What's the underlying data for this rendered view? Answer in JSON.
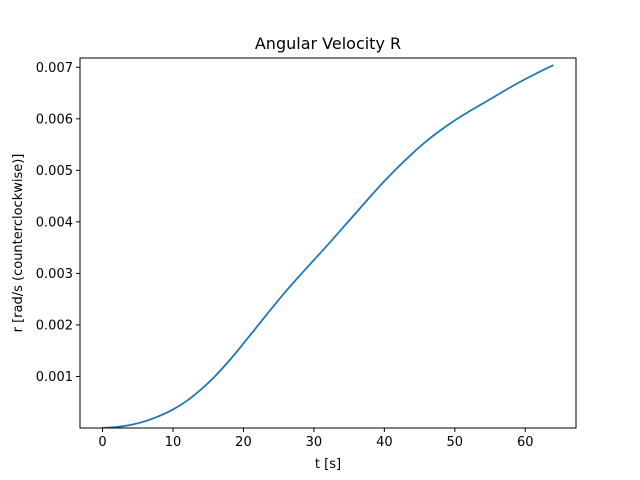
{
  "chart_data": {
    "type": "line",
    "title": "Angular Velocity R",
    "xlabel": "t [s]",
    "ylabel": "r [rad/s (counterclockwise)]",
    "xlim": [
      -3.2,
      67.2
    ],
    "ylim": [
      0.0,
      0.00718
    ],
    "xticks": [
      0,
      10,
      20,
      30,
      40,
      50,
      60
    ],
    "xtick_labels": [
      "0",
      "10",
      "20",
      "30",
      "40",
      "50",
      "60"
    ],
    "yticks": [
      0.001,
      0.002,
      0.003,
      0.004,
      0.005,
      0.006,
      0.007
    ],
    "ytick_labels": [
      "0.001",
      "0.002",
      "0.003",
      "0.004",
      "0.005",
      "0.006",
      "0.007"
    ],
    "grid": false,
    "series": [
      {
        "color": "#1f77b4",
        "x": [
          0,
          2,
          4,
          6,
          8,
          10,
          12,
          14,
          16,
          18,
          20,
          22,
          24,
          26,
          28,
          30,
          32,
          34,
          36,
          38,
          40,
          42,
          44,
          46,
          48,
          50,
          52,
          54,
          56,
          58,
          60,
          62,
          64
        ],
        "y": [
          0.0,
          2e-05,
          6e-05,
          0.00013,
          0.00023,
          0.00036,
          0.00053,
          0.00075,
          0.00101,
          0.00131,
          0.00164,
          0.00198,
          0.00232,
          0.00265,
          0.00296,
          0.00326,
          0.00356,
          0.00387,
          0.00418,
          0.00449,
          0.00479,
          0.00507,
          0.00533,
          0.00557,
          0.00578,
          0.00597,
          0.00614,
          0.0063,
          0.00646,
          0.00662,
          0.00677,
          0.00691,
          0.00704
        ]
      }
    ]
  }
}
